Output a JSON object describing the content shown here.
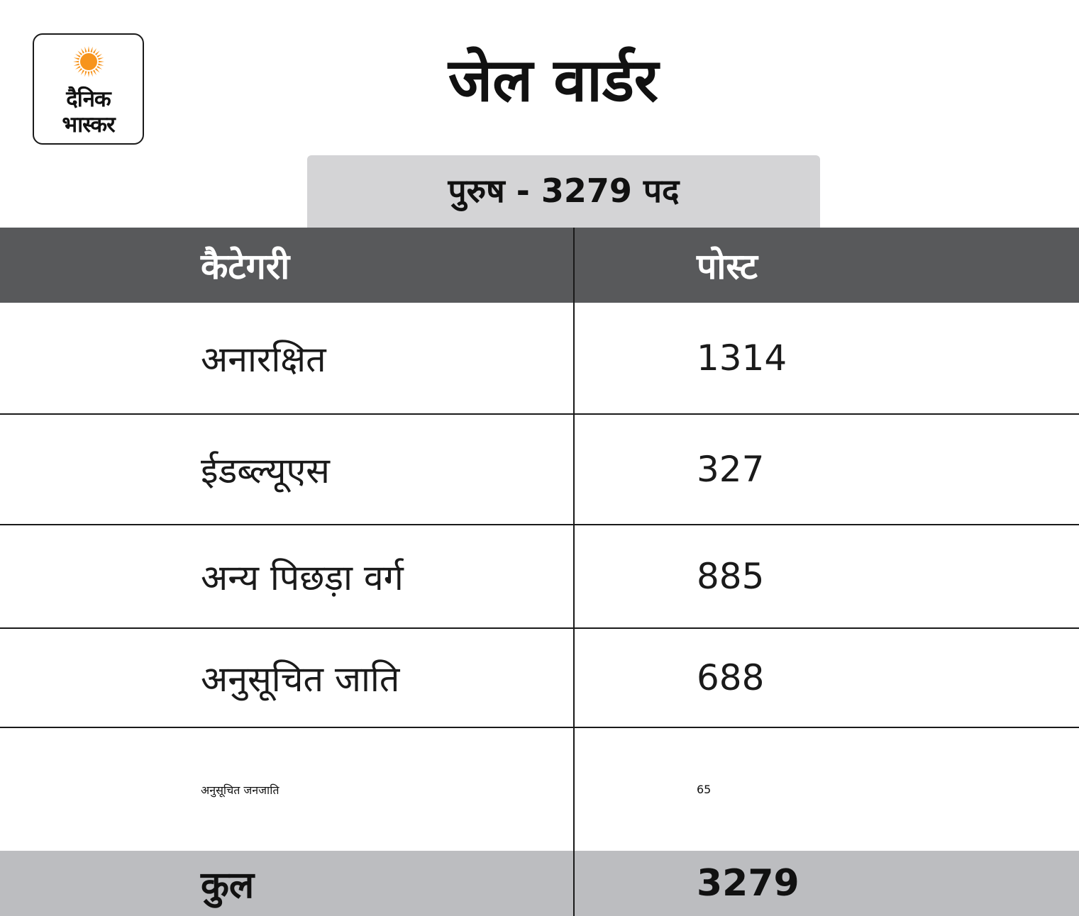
{
  "logo": {
    "line1": "दैनिक",
    "line2": "भास्कर",
    "sun_color": "#f7941d"
  },
  "title": "जेल वार्डर",
  "subtitle": "पुरुष - 3279 पद",
  "table": {
    "headers": [
      "कैटेगरी",
      "पोस्ट"
    ],
    "rows": [
      {
        "category": "अनारक्षित",
        "posts": "1314"
      },
      {
        "category": "ईडब्ल्यूएस",
        "posts": "327"
      },
      {
        "category": "अन्य पिछड़ा वर्ग",
        "posts": "885"
      },
      {
        "category": "अनुसूचित जाति",
        "posts": "688"
      },
      {
        "category": "अनुसूचित जनजाति",
        "posts": "65"
      }
    ],
    "total": {
      "label": "कुल",
      "value": "3279"
    }
  },
  "colors": {
    "header_bg": "#58595b",
    "subtitle_bg": "#d4d4d6",
    "total_bg": "#bcbdc0"
  }
}
